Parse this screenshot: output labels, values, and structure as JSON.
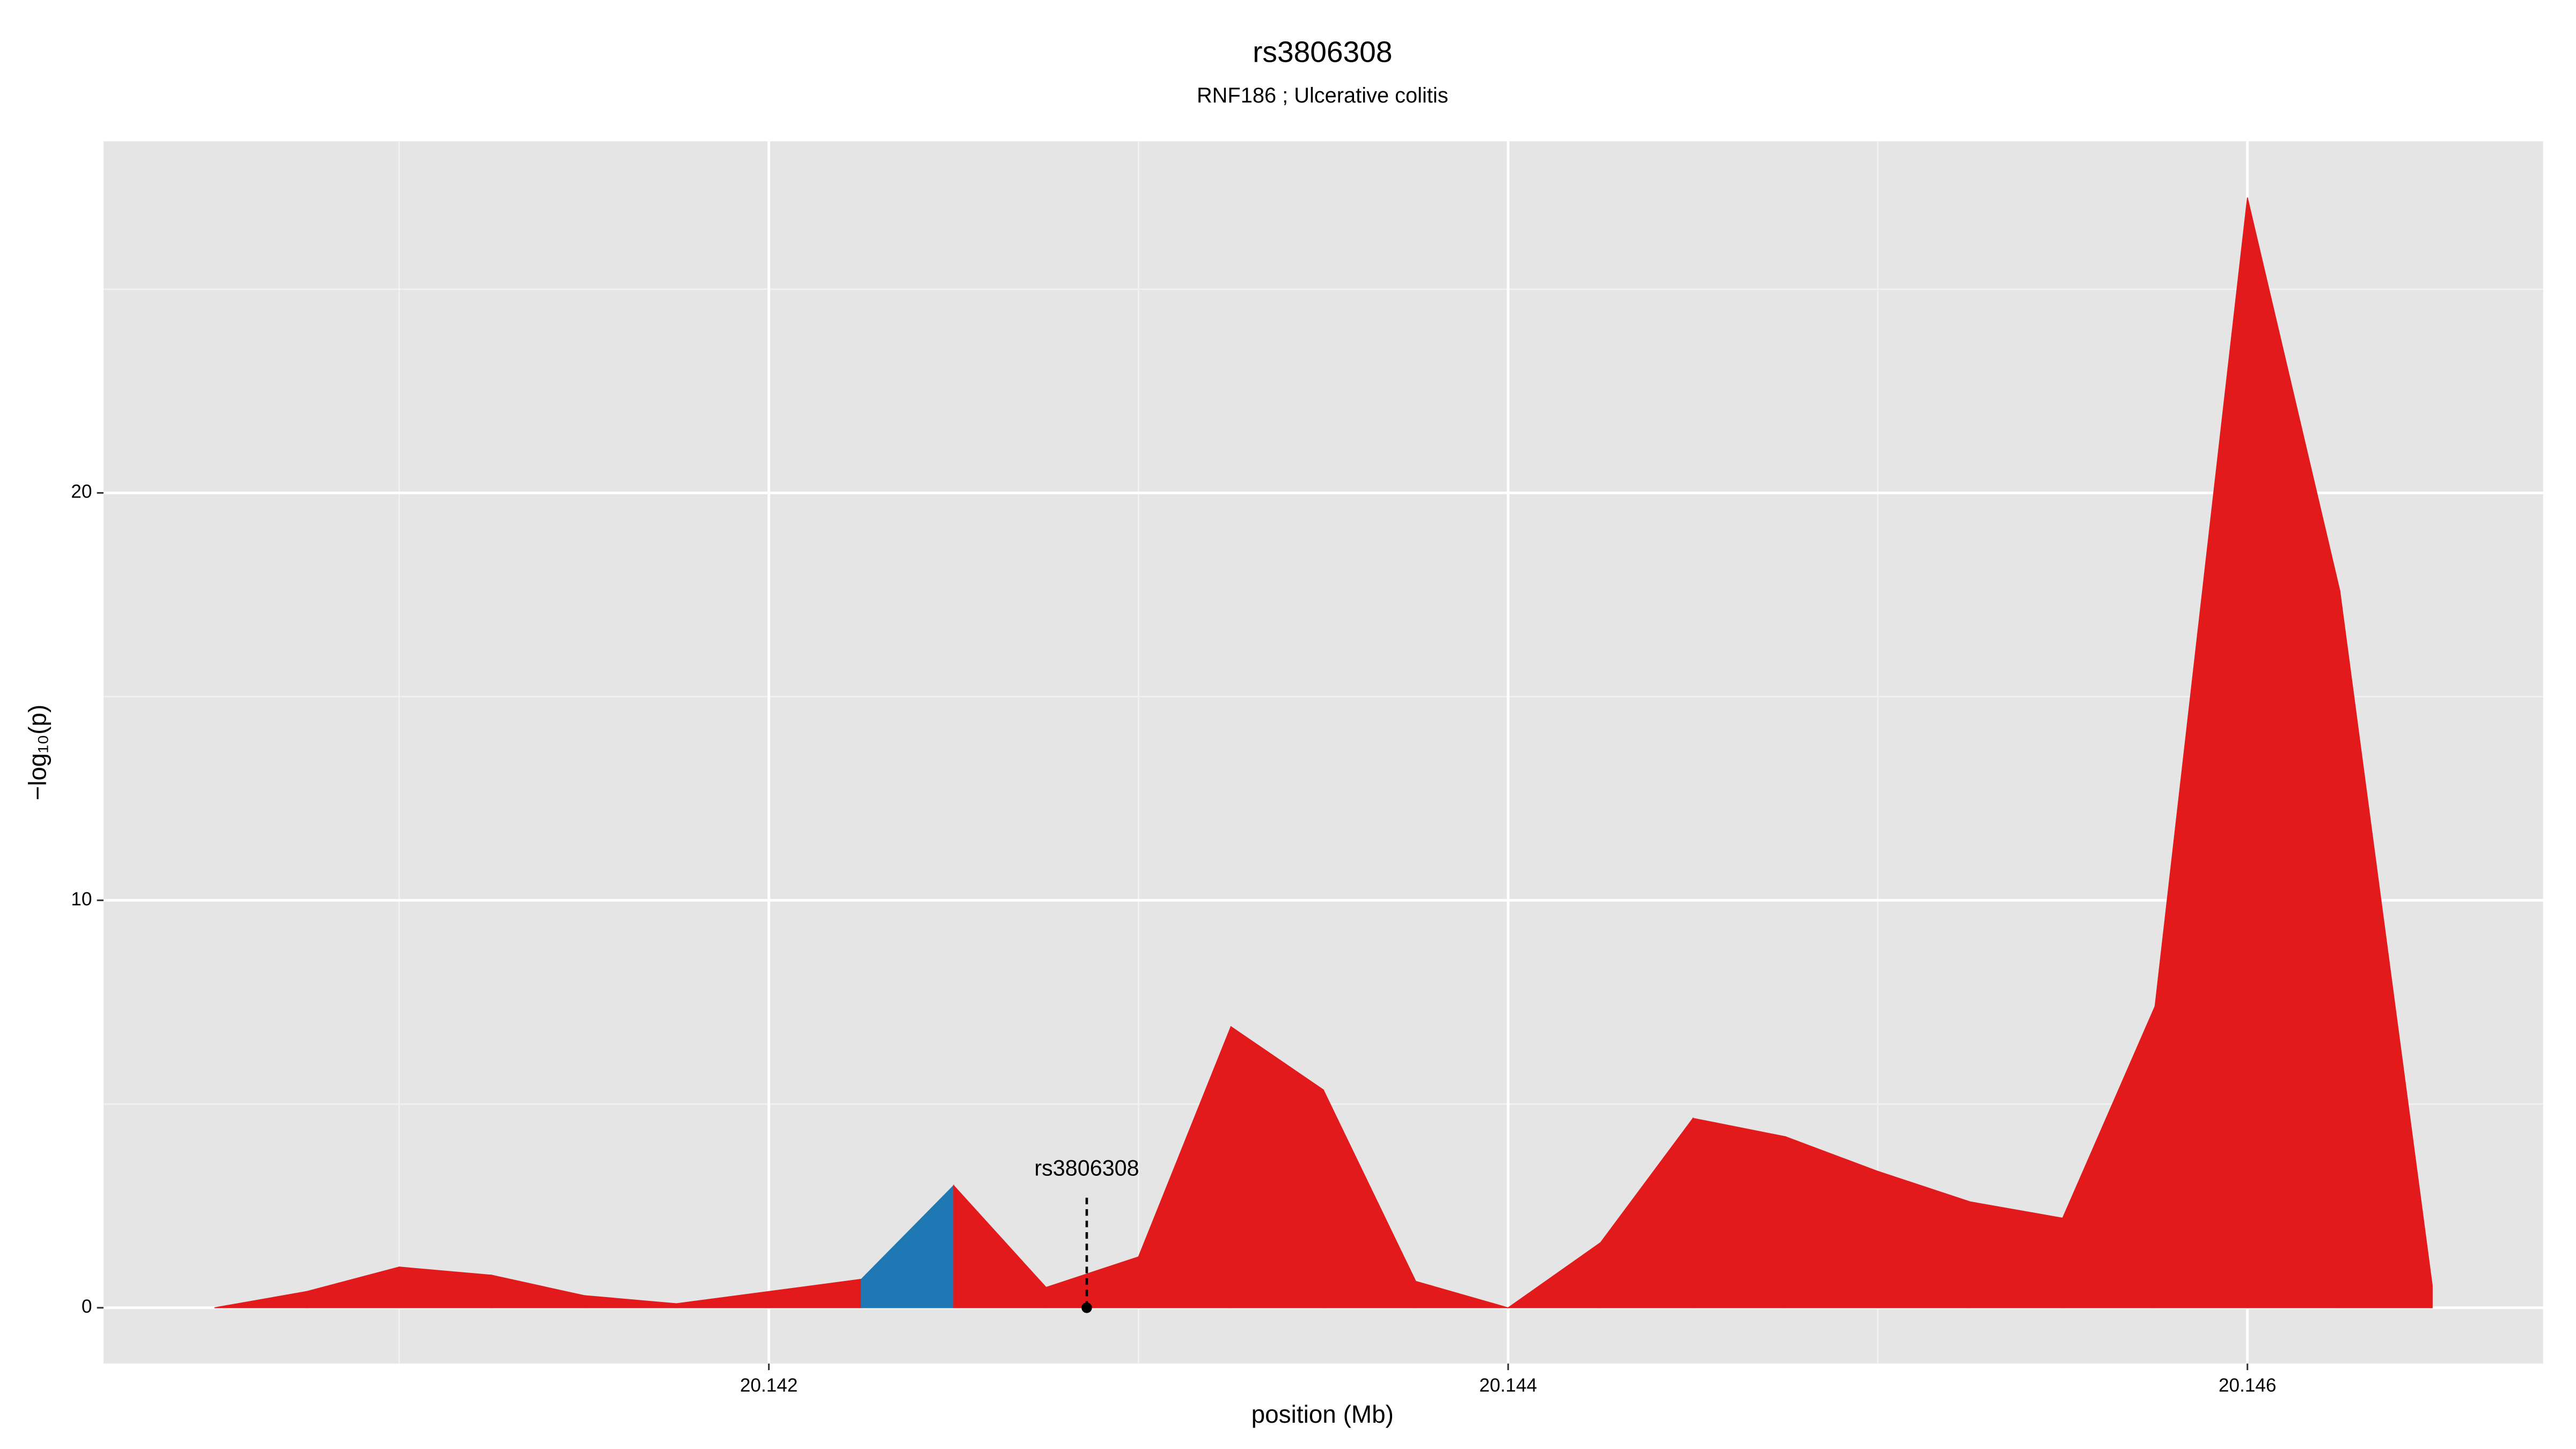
{
  "chart_data": {
    "type": "area",
    "title": "rs3806308",
    "subtitle": "RNF186 ; Ulcerative colitis",
    "xlabel": "position (Mb)",
    "ylabel": "−log₁₀(p)",
    "x": [
      20.1405,
      20.14075,
      20.141,
      20.14125,
      20.1415,
      20.14175,
      20.14225,
      20.1425,
      20.14275,
      20.143,
      20.14325,
      20.1435,
      20.14375,
      20.144,
      20.14425,
      20.1445,
      20.14475,
      20.145,
      20.14525,
      20.1455,
      20.14575,
      20.146,
      20.14625,
      20.1465
    ],
    "values": [
      0.0,
      0.4,
      1.0,
      0.8,
      0.3,
      0.1,
      0.7,
      3.0,
      0.5,
      1.25,
      6.9,
      5.35,
      0.65,
      0.0,
      1.6,
      4.65,
      4.2,
      3.35,
      2.6,
      2.2,
      7.4,
      27.25,
      17.6,
      0.55
    ],
    "segment_colors": [
      "#e31a1c",
      "#e31a1c",
      "#e31a1c",
      "#e31a1c",
      "#e31a1c",
      "#e31a1c",
      "#1f78b4",
      "#e31a1c",
      "#e31a1c",
      "#e31a1c",
      "#e31a1c",
      "#e31a1c",
      "#e31a1c",
      "#e31a1c",
      "#e31a1c",
      "#e31a1c",
      "#e31a1c",
      "#e31a1c",
      "#e31a1c",
      "#e31a1c",
      "#e31a1c",
      "#e31a1c",
      "#e31a1c"
    ],
    "xlim": [
      20.1402,
      20.1468
    ],
    "ylim": [
      -1.37,
      28.63
    ],
    "xticks": [
      20.142,
      20.144,
      20.146
    ],
    "yticks": [
      0,
      10,
      20
    ],
    "xminor": [
      20.141,
      20.143,
      20.145
    ],
    "yminor": [
      5,
      15,
      25
    ],
    "grid": true,
    "annotation": {
      "text": "rs3806308",
      "x": 20.14286,
      "y": 0
    }
  }
}
